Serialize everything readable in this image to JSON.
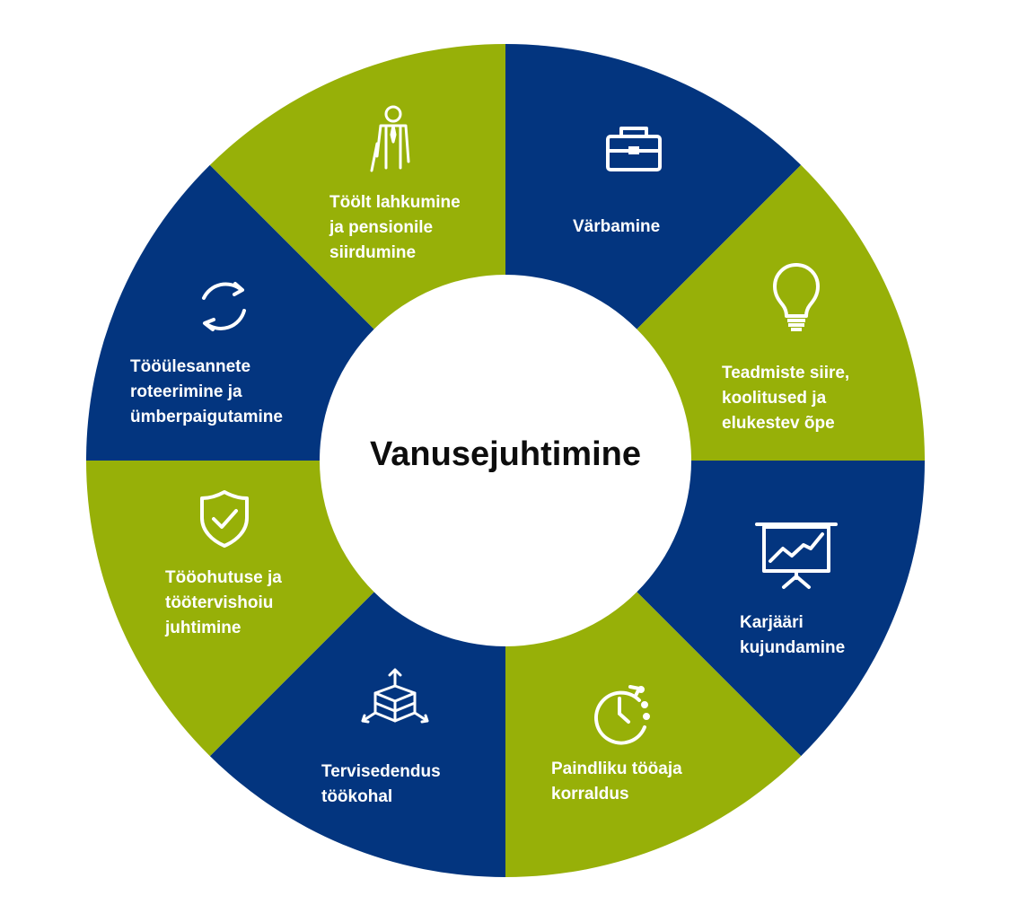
{
  "center_title": "Vanusejuhtimine",
  "colors": {
    "blue": "#03357f",
    "green": "#97b008",
    "white": "#ffffff"
  },
  "segments": [
    {
      "icon": "briefcase-icon",
      "color": "blue",
      "lines": [
        "Värbamine"
      ]
    },
    {
      "icon": "lightbulb-icon",
      "color": "green",
      "lines": [
        "Teadmiste siire,",
        "koolitused ja",
        "elukestev õpe"
      ]
    },
    {
      "icon": "presentation-chart-icon",
      "color": "blue",
      "lines": [
        "Karjääri",
        "kujundamine"
      ]
    },
    {
      "icon": "clock-icon",
      "color": "green",
      "lines": [
        "Paindliku  tööaja",
        "korraldus"
      ]
    },
    {
      "icon": "cube-icon",
      "color": "blue",
      "lines": [
        "Tervisedendus",
        "töökohal"
      ]
    },
    {
      "icon": "shield-check-icon",
      "color": "green",
      "lines": [
        "Tööohutuse ja",
        "töötervishoiu",
        "juhtimine"
      ]
    },
    {
      "icon": "rotate-icon",
      "color": "blue",
      "lines": [
        "Tööülesannete",
        "roteerimine ja",
        "ümberpaigutamine"
      ]
    },
    {
      "icon": "retiree-icon",
      "color": "green",
      "lines": [
        "Töölt lahkumine",
        "ja pensionile",
        "siirdumine"
      ]
    }
  ]
}
